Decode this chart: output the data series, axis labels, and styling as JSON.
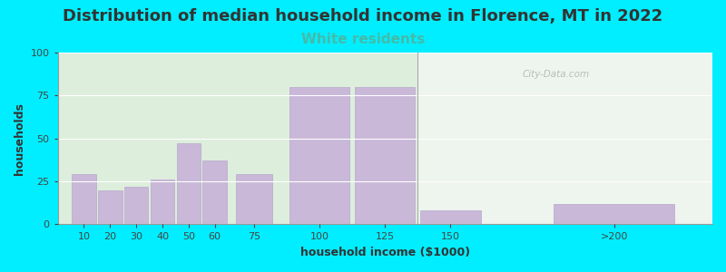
{
  "title": "Distribution of median household income in Florence, MT in 2022",
  "subtitle": "White residents",
  "xlabel": "household income ($1000)",
  "ylabel": "households",
  "bar_labels": [
    "10",
    "20",
    "30",
    "40",
    "50",
    "60",
    "75",
    "100",
    "125",
    "150",
    ">200"
  ],
  "bar_values": [
    29,
    20,
    22,
    26,
    47,
    37,
    29,
    80,
    80,
    8,
    12
  ],
  "bar_widths": [
    10,
    10,
    10,
    10,
    10,
    10,
    15,
    25,
    25,
    25,
    50
  ],
  "bar_centers": [
    10,
    20,
    30,
    40,
    50,
    60,
    75,
    100,
    125,
    150,
    212.5
  ],
  "bar_color": "#c9b8d8",
  "bar_edge_color": "#b8a8cc",
  "background_color": "#00eeff",
  "plot_bg_left": "#ddeedd",
  "plot_bg_right": "#eef4ee",
  "ylim": [
    0,
    100
  ],
  "xlim": [
    0,
    250
  ],
  "title_fontsize": 13,
  "subtitle_fontsize": 11,
  "subtitle_color": "#44bbaa",
  "title_color": "#333333",
  "watermark": "City-Data.com",
  "divider_x": 137.5,
  "tick_positions": [
    10,
    20,
    30,
    40,
    50,
    60,
    75,
    100,
    125,
    150,
    212.5
  ],
  "tick_labels": [
    "10",
    "20",
    "30",
    "40",
    "50",
    "60",
    "75",
    "100",
    "125",
    "150",
    ">200"
  ]
}
